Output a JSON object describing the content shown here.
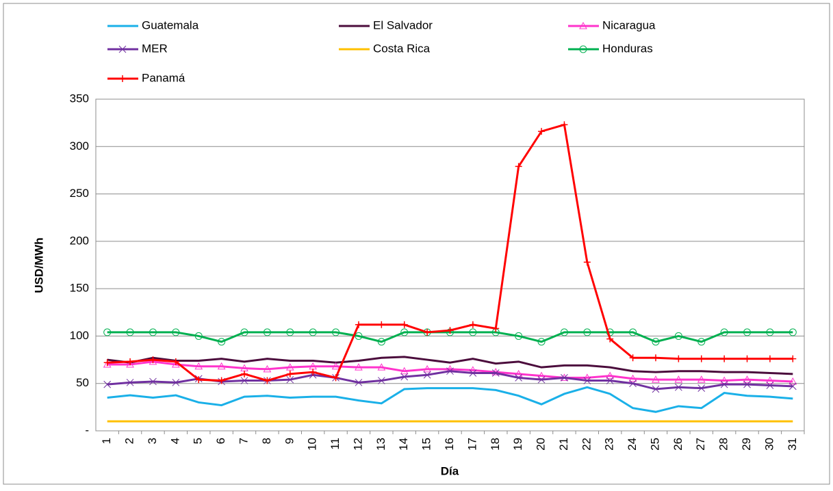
{
  "chart_data": {
    "type": "line",
    "y_label": "USD/MWh",
    "x_label": "Día",
    "categories": [
      "1",
      "2",
      "3",
      "4",
      "5",
      "6",
      "7",
      "8",
      "9",
      "10",
      "11",
      "12",
      "13",
      "14",
      "15",
      "16",
      "17",
      "18",
      "19",
      "20",
      "21",
      "22",
      "23",
      "24",
      "25",
      "26",
      "27",
      "28",
      "29",
      "30",
      "31"
    ],
    "ylim": [
      0,
      350
    ],
    "yticks": [
      {
        "value": 0,
        "label": "-"
      },
      50,
      100,
      150,
      200,
      250,
      300,
      350
    ],
    "grid": true,
    "legend": "top",
    "series": [
      {
        "name": "Guatemala",
        "color": "#1ab0e8",
        "marker": "none",
        "values": [
          35,
          37.5,
          35,
          37.5,
          30,
          27,
          36,
          37,
          35,
          36,
          36,
          32,
          29,
          44,
          45,
          45,
          45,
          43,
          37,
          28,
          39,
          46,
          39,
          24,
          20,
          26,
          24,
          40,
          37,
          36,
          34
        ]
      },
      {
        "name": "El Salvador",
        "color": "#4b0c3c",
        "marker": "none",
        "values": [
          75,
          72,
          77,
          74,
          74,
          76,
          73,
          76,
          74,
          74,
          72,
          74,
          77,
          78,
          75,
          72,
          76,
          71,
          73,
          67,
          69,
          69,
          67,
          63,
          62,
          63,
          63,
          62,
          62,
          61,
          60
        ]
      },
      {
        "name": "Nicaragua",
        "color": "#ff33cc",
        "marker": "triangle",
        "values": [
          70,
          70,
          73,
          70,
          68,
          68,
          66,
          65,
          67,
          68,
          68,
          67,
          67,
          63,
          65,
          65,
          64,
          62,
          60,
          58,
          56,
          56,
          58,
          55,
          54,
          54,
          54,
          53,
          54,
          53,
          52
        ]
      },
      {
        "name": "MER",
        "color": "#7030a0",
        "marker": "x",
        "values": [
          49,
          51,
          52,
          51,
          55,
          52,
          53,
          53,
          54,
          59,
          56,
          51,
          53,
          57,
          59,
          63,
          61,
          61,
          56,
          54,
          56,
          53,
          53,
          50,
          44,
          46,
          45,
          49,
          49,
          48,
          47
        ]
      },
      {
        "name": "Costa Rica",
        "color": "#ffc000",
        "marker": "none",
        "values": [
          10,
          10,
          10,
          10,
          10,
          10,
          10,
          10,
          10,
          10,
          10,
          10,
          10,
          10,
          10,
          10,
          10,
          10,
          10,
          10,
          10,
          10,
          10,
          10,
          10,
          10,
          10,
          10,
          10,
          10,
          10
        ]
      },
      {
        "name": "Honduras",
        "color": "#00b050",
        "marker": "circle",
        "values": [
          104,
          104,
          104,
          104,
          100,
          94,
          104,
          104,
          104,
          104,
          104,
          100,
          94,
          104,
          104,
          104,
          104,
          104,
          100,
          94,
          104,
          104,
          104,
          104,
          94,
          100,
          94,
          104,
          104,
          104,
          104
        ]
      },
      {
        "name": "Panamá",
        "color": "#ff0000",
        "marker": "plus",
        "values": [
          72,
          73,
          75,
          73,
          54,
          53,
          60,
          53,
          60,
          62,
          56,
          112,
          112,
          112,
          104,
          106,
          112,
          108,
          279,
          316,
          323,
          178,
          97,
          77,
          77,
          76,
          76,
          76,
          76,
          76,
          76
        ]
      }
    ]
  }
}
